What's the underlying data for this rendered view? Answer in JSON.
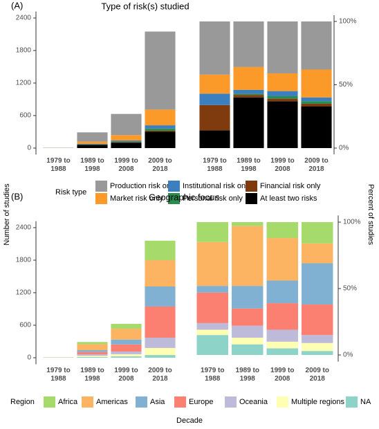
{
  "labels": {
    "y_left": "Number of studies",
    "y_right": "Percent of studies",
    "x": "Decade"
  },
  "chart_data": [
    {
      "type": "bar",
      "stacked": true,
      "panel_label": "(A)",
      "title": "Type of risk(s) studied",
      "legend_title": "Risk type",
      "categories": [
        "1979 to 1988",
        "1989 to 1998",
        "1999 to 2008",
        "2009 to 2018"
      ],
      "ylim": [
        -120,
        2520
      ],
      "yticks": [
        0,
        600,
        1200,
        1800,
        2400
      ],
      "series": [
        {
          "name": "Production risk only",
          "color": "#999999",
          "values": [
            3,
            170,
            390,
            1440
          ]
        },
        {
          "name": "Market risk only",
          "color": "#fb9a29",
          "values": [
            1,
            40,
            100,
            290
          ]
        },
        {
          "name": "Institutional risk only",
          "color": "#3c7fbf",
          "values": [
            1,
            10,
            20,
            60
          ]
        },
        {
          "name": "Personal risk only",
          "color": "#2c8c4f",
          "values": [
            0,
            5,
            10,
            40
          ]
        },
        {
          "name": "Financial risk only",
          "color": "#7f3b0d",
          "values": [
            1,
            5,
            10,
            20
          ]
        },
        {
          "name": "At least two risks",
          "color": "#000000",
          "values": [
            1,
            60,
            100,
            300
          ]
        }
      ]
    },
    {
      "type": "bar",
      "stacked": true,
      "categories": [
        "1979 to 1988",
        "1989 to 1998",
        "1999 to 2008",
        "2009 to 2018"
      ],
      "ylim": [
        -5,
        105
      ],
      "yticks": [
        {
          "value": 0,
          "label": "0%"
        },
        {
          "value": 50,
          "label": "50%"
        },
        {
          "value": 100,
          "label": "100%"
        }
      ],
      "series": [
        {
          "color": "#999999",
          "values": [
            42,
            36,
            41,
            38
          ]
        },
        {
          "color": "#fb9a29",
          "values": [
            15,
            18,
            14,
            22
          ]
        },
        {
          "color": "#3c7fbf",
          "values": [
            9,
            3,
            4,
            3
          ]
        },
        {
          "color": "#2c8c4f",
          "values": [
            0,
            1,
            2,
            2
          ]
        },
        {
          "color": "#7f3b0d",
          "values": [
            20,
            2,
            2,
            2
          ]
        },
        {
          "color": "#000000",
          "values": [
            14,
            40,
            37,
            33
          ]
        }
      ]
    },
    {
      "type": "bar",
      "stacked": true,
      "panel_label": "(B)",
      "title": "Geographic focus",
      "legend_title": "Region",
      "categories": [
        "1979 to 1988",
        "1989 to 1998",
        "1999 to 2008",
        "2009 to 2018"
      ],
      "ylim": [
        -120,
        2520
      ],
      "yticks": [
        0,
        600,
        1200,
        1800,
        2400
      ],
      "series": [
        {
          "name": "Africa",
          "color": "#a6da6b",
          "values": [
            0,
            40,
            90,
            360
          ]
        },
        {
          "name": "Americas",
          "color": "#fdb462",
          "values": [
            2,
            110,
            200,
            485
          ]
        },
        {
          "name": "Asia",
          "color": "#80b1d3",
          "values": [
            0,
            35,
            90,
            370
          ]
        },
        {
          "name": "Europe",
          "color": "#fb8072",
          "values": [
            2,
            45,
            130,
            575
          ]
        },
        {
          "name": "Oceania",
          "color": "#bebada",
          "values": [
            1,
            25,
            50,
            190
          ]
        },
        {
          "name": "Multiple regions",
          "color": "#ffffb3",
          "values": [
            1,
            20,
            40,
            130
          ]
        },
        {
          "name": "NA",
          "color": "#8dd3c7",
          "values": [
            4,
            15,
            25,
            50
          ]
        }
      ]
    },
    {
      "type": "bar",
      "stacked": true,
      "categories": [
        "1979 to 1988",
        "1989 to 1998",
        "1999 to 2008",
        "2009 to 2018"
      ],
      "ylim": [
        -5,
        105
      ],
      "yticks": [
        {
          "value": 0,
          "label": "0%"
        },
        {
          "value": 50,
          "label": "50%"
        },
        {
          "value": 100,
          "label": "100%"
        }
      ],
      "series": [
        {
          "color": "#a6da6b",
          "values": [
            15,
            3,
            12,
            16
          ]
        },
        {
          "color": "#fdb462",
          "values": [
            33,
            45,
            32,
            15
          ]
        },
        {
          "color": "#80b1d3",
          "values": [
            5,
            17,
            17,
            31
          ]
        },
        {
          "color": "#fb8072",
          "values": [
            23,
            13,
            20,
            23
          ]
        },
        {
          "color": "#bebada",
          "values": [
            5,
            9,
            9,
            6
          ]
        },
        {
          "color": "#ffffb3",
          "values": [
            4,
            5,
            5,
            6
          ]
        },
        {
          "color": "#8dd3c7",
          "values": [
            15,
            8,
            5,
            3
          ]
        }
      ]
    }
  ]
}
